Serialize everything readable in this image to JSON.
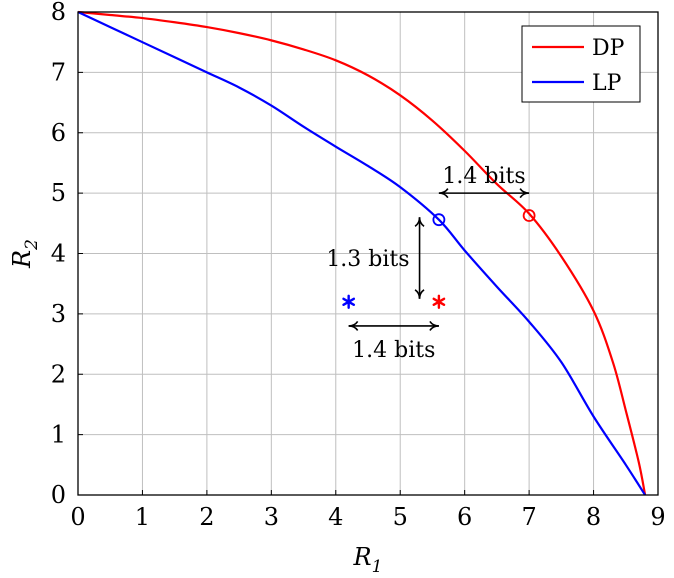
{
  "chart_data": {
    "type": "line",
    "xlabel": "R",
    "xlabel_sub": "1",
    "ylabel": "R",
    "ylabel_sub": "2",
    "xlim": [
      0,
      9
    ],
    "ylim": [
      0,
      8
    ],
    "xticks": [
      "0",
      "1",
      "2",
      "3",
      "4",
      "5",
      "6",
      "7",
      "8",
      "9"
    ],
    "yticks": [
      "0",
      "1",
      "2",
      "3",
      "4",
      "5",
      "6",
      "7",
      "8"
    ],
    "grid": true,
    "legend_position": "top-right",
    "series": [
      {
        "name": "DP",
        "color": "#ff0000",
        "points": [
          [
            0,
            8.0
          ],
          [
            0.5,
            7.95
          ],
          [
            1,
            7.9
          ],
          [
            1.5,
            7.83
          ],
          [
            2,
            7.75
          ],
          [
            2.5,
            7.65
          ],
          [
            3,
            7.53
          ],
          [
            3.5,
            7.38
          ],
          [
            4,
            7.2
          ],
          [
            4.5,
            6.95
          ],
          [
            5,
            6.62
          ],
          [
            5.5,
            6.2
          ],
          [
            6,
            5.7
          ],
          [
            6.5,
            5.15
          ],
          [
            7,
            4.66
          ],
          [
            7.5,
            3.95
          ],
          [
            8,
            3.05
          ],
          [
            8.3,
            2.2
          ],
          [
            8.5,
            1.4
          ],
          [
            8.7,
            0.55
          ],
          [
            8.8,
            0.0
          ]
        ]
      },
      {
        "name": "LP",
        "color": "#0000ff",
        "points": [
          [
            0,
            8.0
          ],
          [
            0.5,
            7.75
          ],
          [
            1,
            7.5
          ],
          [
            1.5,
            7.25
          ],
          [
            2,
            7.0
          ],
          [
            2.5,
            6.75
          ],
          [
            3,
            6.45
          ],
          [
            3.5,
            6.1
          ],
          [
            4,
            5.77
          ],
          [
            4.5,
            5.45
          ],
          [
            5,
            5.1
          ],
          [
            5.6,
            4.56
          ],
          [
            6,
            4.05
          ],
          [
            6.5,
            3.45
          ],
          [
            7,
            2.87
          ],
          [
            7.5,
            2.2
          ],
          [
            8,
            1.3
          ],
          [
            8.5,
            0.5
          ],
          [
            8.8,
            0.0
          ]
        ]
      }
    ],
    "markers": [
      {
        "name": "dp-circle",
        "shape": "circle",
        "x": 7.0,
        "y": 4.63,
        "color": "#ff0000"
      },
      {
        "name": "lp-circle",
        "shape": "circle",
        "x": 5.6,
        "y": 4.56,
        "color": "#0000ff"
      },
      {
        "name": "blue-asterisk",
        "shape": "asterisk",
        "x": 4.2,
        "y": 3.2,
        "color": "#0000ff"
      },
      {
        "name": "red-asterisk",
        "shape": "asterisk",
        "x": 5.6,
        "y": 3.2,
        "color": "#ff0000"
      }
    ],
    "annotations": [
      {
        "name": "gap-top",
        "text": "1.4 bits",
        "arrow": "horizontal",
        "x1": 5.6,
        "x2": 7.0,
        "y": 5.0
      },
      {
        "name": "gap-vertical",
        "text": "1.3 bits",
        "arrow": "vertical",
        "x": 5.3,
        "y1": 3.25,
        "y2": 4.6
      },
      {
        "name": "gap-bottom",
        "text": "1.4 bits",
        "arrow": "horizontal",
        "x1": 4.2,
        "x2": 5.6,
        "y": 2.8
      }
    ]
  }
}
